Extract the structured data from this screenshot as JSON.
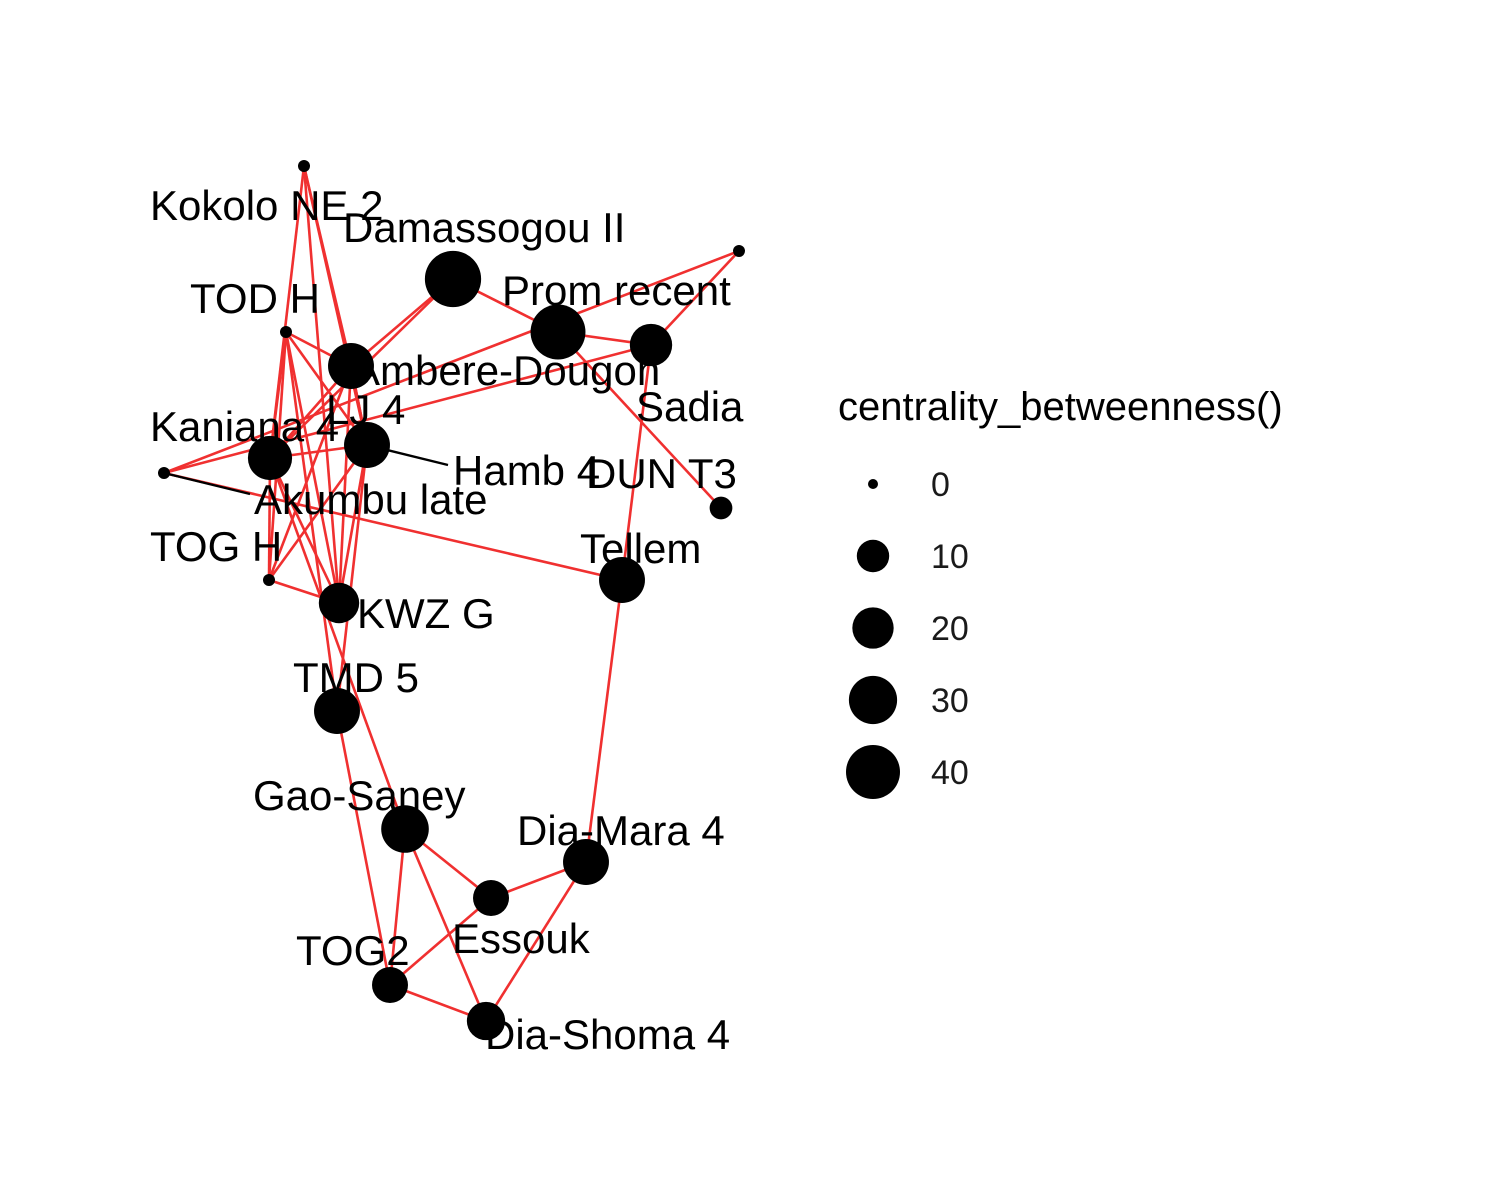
{
  "colors": {
    "edge": "#f03030",
    "leader": "#000000",
    "node": "#000000",
    "background": "#ffffff"
  },
  "nodes": [
    {
      "id": "kokolo",
      "label": "Kokolo NE 2",
      "betweenness": 0
    },
    {
      "id": "damassogou",
      "label": "Damassogou II",
      "betweenness": 34
    },
    {
      "id": "prom",
      "label": "Prom recent",
      "betweenness": 32
    },
    {
      "id": "todh",
      "label": "TOD H",
      "betweenness": 0
    },
    {
      "id": "ambere",
      "label": "Ambere-Dougon",
      "betweenness": 20
    },
    {
      "id": "sadia",
      "label": "Sadia",
      "betweenness": 0
    },
    {
      "id": "sadia_node",
      "label": "",
      "betweenness": 16
    },
    {
      "id": "kaniana",
      "label": "Kaniana 4",
      "betweenness": 18
    },
    {
      "id": "lj4",
      "label": "LJ 4",
      "betweenness": 20
    },
    {
      "id": "hamb",
      "label": "Hamb 4",
      "betweenness": 0
    },
    {
      "id": "dun",
      "label": "DUN T3",
      "betweenness": 2
    },
    {
      "id": "akumbu",
      "label": "Akumbu late",
      "betweenness": 0
    },
    {
      "id": "togh",
      "label": "TOG H",
      "betweenness": 0
    },
    {
      "id": "tellem",
      "label": "Tellem",
      "betweenness": 20
    },
    {
      "id": "kwzg",
      "label": "KWZ G",
      "betweenness": 14
    },
    {
      "id": "tmd5",
      "label": "TMD 5",
      "betweenness": 20
    },
    {
      "id": "gaosaney",
      "label": "Gao-Saney",
      "betweenness": 22
    },
    {
      "id": "diamara",
      "label": "Dia-Mara 4",
      "betweenness": 20
    },
    {
      "id": "essouk",
      "label": "Essouk",
      "betweenness": 10
    },
    {
      "id": "tog2",
      "label": "TOG2",
      "betweenness": 10
    },
    {
      "id": "diashoma",
      "label": "Dia-Shoma 4",
      "betweenness": 12
    }
  ],
  "edges": [
    [
      "kokolo",
      "ambere"
    ],
    [
      "kokolo",
      "lj4"
    ],
    [
      "kokolo",
      "kwzg"
    ],
    [
      "kokolo",
      "kaniana"
    ],
    [
      "damassogou",
      "ambere"
    ],
    [
      "damassogou",
      "prom"
    ],
    [
      "damassogou",
      "kaniana"
    ],
    [
      "prom",
      "sadia_node"
    ],
    [
      "prom",
      "dun"
    ],
    [
      "sadia",
      "sadia_node"
    ],
    [
      "sadia",
      "akumbu"
    ],
    [
      "sadia_node",
      "akumbu"
    ],
    [
      "sadia_node",
      "tellem"
    ],
    [
      "akumbu",
      "tellem"
    ],
    [
      "tellem",
      "diamara"
    ],
    [
      "todh",
      "ambere"
    ],
    [
      "todh",
      "lj4"
    ],
    [
      "todh",
      "kaniana"
    ],
    [
      "todh",
      "kwzg"
    ],
    [
      "todh",
      "togh"
    ],
    [
      "todh",
      "tmd5"
    ],
    [
      "ambere",
      "kaniana"
    ],
    [
      "ambere",
      "lj4"
    ],
    [
      "ambere",
      "kwzg"
    ],
    [
      "ambere",
      "togh"
    ],
    [
      "ambere",
      "hamb"
    ],
    [
      "kaniana",
      "lj4"
    ],
    [
      "kaniana",
      "kwzg"
    ],
    [
      "kaniana",
      "togh"
    ],
    [
      "kaniana",
      "gaosaney"
    ],
    [
      "lj4",
      "kwzg"
    ],
    [
      "lj4",
      "togh"
    ],
    [
      "lj4",
      "tmd5"
    ],
    [
      "kwzg",
      "togh"
    ],
    [
      "tmd5",
      "tog2"
    ],
    [
      "gaosaney",
      "tog2"
    ],
    [
      "gaosaney",
      "essouk"
    ],
    [
      "gaosaney",
      "diashoma"
    ],
    [
      "essouk",
      "diamara"
    ],
    [
      "essouk",
      "tog2"
    ],
    [
      "diamara",
      "diashoma"
    ],
    [
      "tog2",
      "diashoma"
    ]
  ],
  "legend": {
    "title": "centrality_betweenness()",
    "breaks": [
      {
        "label": "0",
        "value": 0
      },
      {
        "label": "10",
        "value": 10
      },
      {
        "label": "20",
        "value": 20
      },
      {
        "label": "30",
        "value": 30
      },
      {
        "label": "40",
        "value": 40
      }
    ]
  }
}
